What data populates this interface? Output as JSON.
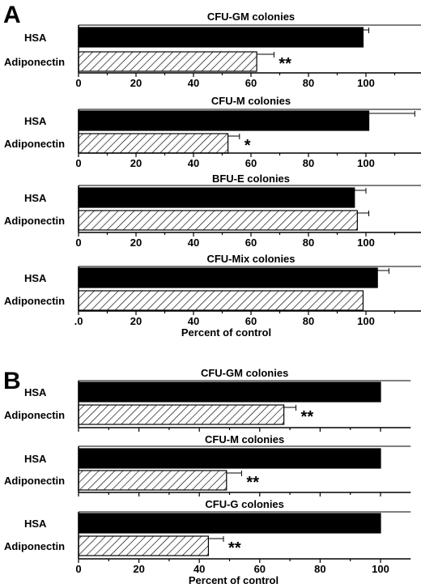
{
  "panel_labels": [
    "A",
    "B"
  ],
  "colors": {
    "hsa_fill": "#000000",
    "adiponectin_hatch": "#000000",
    "background": "#ffffff"
  },
  "chart_data": [
    {
      "type": "bar",
      "orientation": "horizontal",
      "panel": "A",
      "title": "CFU-GM colonies",
      "categories": [
        "HSA",
        "Adiponectin"
      ],
      "values": [
        99,
        62
      ],
      "errors": [
        2,
        6
      ],
      "significance": [
        "",
        "**"
      ],
      "xlim": [
        0,
        120
      ],
      "xticks": [
        "0",
        "20",
        "40",
        "60",
        "80",
        "100"
      ],
      "xlabel": ""
    },
    {
      "type": "bar",
      "orientation": "horizontal",
      "panel": "A",
      "title": "CFU-M colonies",
      "categories": [
        "HSA",
        "Adiponectin"
      ],
      "values": [
        101,
        52
      ],
      "errors": [
        16,
        4
      ],
      "significance": [
        "",
        "*"
      ],
      "xlim": [
        0,
        120
      ],
      "xticks": [
        "0",
        "20",
        "40",
        "60",
        "80",
        "100"
      ],
      "xlabel": ""
    },
    {
      "type": "bar",
      "orientation": "horizontal",
      "panel": "A",
      "title": "BFU-E colonies",
      "categories": [
        "HSA",
        "Adiponectin"
      ],
      "values": [
        96,
        97
      ],
      "errors": [
        4,
        4
      ],
      "significance": [
        "",
        ""
      ],
      "xlim": [
        0,
        120
      ],
      "xticks": [
        "0",
        "20",
        "40",
        "60",
        "80",
        "100"
      ],
      "xlabel": ""
    },
    {
      "type": "bar",
      "orientation": "horizontal",
      "panel": "A",
      "title": "CFU-Mix colonies",
      "categories": [
        "HSA",
        "Adiponectin"
      ],
      "values": [
        104,
        99
      ],
      "errors": [
        4,
        0
      ],
      "significance": [
        "",
        ""
      ],
      "xlim": [
        0,
        120
      ],
      "xticks": [
        ".0",
        "20",
        "40",
        "60",
        "80",
        "100"
      ],
      "xlabel": "Percent of control"
    },
    {
      "type": "bar",
      "orientation": "horizontal",
      "panel": "B",
      "title": "CFU-GM colonies",
      "categories": [
        "HSA",
        "Adiponectin"
      ],
      "values": [
        100,
        68
      ],
      "errors": [
        0,
        4
      ],
      "significance": [
        "",
        "**"
      ],
      "xlim": [
        0,
        110
      ],
      "xticks": [],
      "xlabel": ""
    },
    {
      "type": "bar",
      "orientation": "horizontal",
      "panel": "B",
      "title": "CFU-M colonies",
      "categories": [
        "HSA",
        "Adiponectin"
      ],
      "values": [
        100,
        49
      ],
      "errors": [
        0,
        5
      ],
      "significance": [
        "",
        "**"
      ],
      "xlim": [
        0,
        110
      ],
      "xticks": [],
      "xlabel": ""
    },
    {
      "type": "bar",
      "orientation": "horizontal",
      "panel": "B",
      "title": "CFU-G colonies",
      "categories": [
        "HSA",
        "Adiponectin"
      ],
      "values": [
        100,
        43
      ],
      "errors": [
        0,
        5
      ],
      "significance": [
        "",
        "**"
      ],
      "xlim": [
        0,
        110
      ],
      "xticks": [
        "0",
        "20",
        "40",
        "60",
        "80",
        "100"
      ],
      "xlabel": "Percent of control"
    }
  ]
}
